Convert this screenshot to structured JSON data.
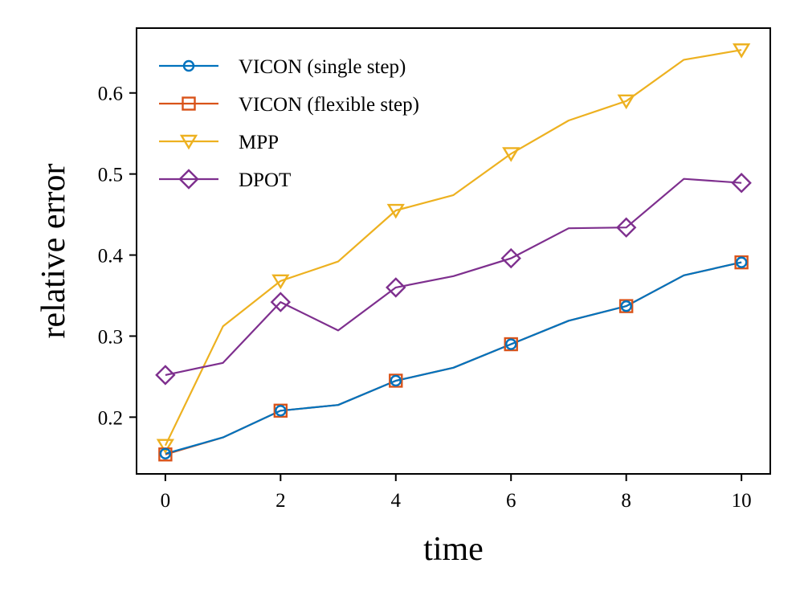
{
  "chart_data": {
    "type": "line",
    "title": "",
    "xlabel": "time",
    "ylabel": "relative error",
    "xlim": [
      -0.5,
      10.5
    ],
    "ylim": [
      0.13,
      0.68
    ],
    "xticks": [
      0,
      2,
      4,
      6,
      8,
      10
    ],
    "xtick_labels": [
      "0",
      "2",
      "4",
      "6",
      "8",
      "10"
    ],
    "yticks": [
      0.2,
      0.3,
      0.4,
      0.5,
      0.6
    ],
    "ytick_labels": [
      "0.2",
      "0.3",
      "0.4",
      "0.5",
      "0.6"
    ],
    "grid": false,
    "legend_position": "top-left",
    "x": [
      0,
      1,
      2,
      3,
      4,
      5,
      6,
      7,
      8,
      9,
      10
    ],
    "series": [
      {
        "name": "VICON (single step)",
        "color": "#0072BD",
        "marker": "circle",
        "values": [
          0.155,
          0.175,
          0.208,
          0.215,
          0.245,
          0.261,
          0.29,
          0.319,
          0.337,
          0.375,
          0.391
        ]
      },
      {
        "name": "VICON (flexible step)",
        "color": "#D95319",
        "marker": "square",
        "values": [
          0.154,
          0.175,
          0.208,
          0.215,
          0.245,
          0.261,
          0.29,
          0.319,
          0.337,
          0.375,
          0.391
        ]
      },
      {
        "name": "MPP",
        "color": "#EDB120",
        "marker": "triangle-down",
        "values": [
          0.165,
          0.312,
          0.368,
          0.392,
          0.455,
          0.474,
          0.525,
          0.566,
          0.59,
          0.641,
          0.653
        ]
      },
      {
        "name": "DPOT",
        "color": "#7E2F8E",
        "marker": "diamond",
        "values": [
          0.252,
          0.267,
          0.342,
          0.307,
          0.36,
          0.374,
          0.396,
          0.433,
          0.434,
          0.494,
          0.489
        ]
      }
    ],
    "marker_x": [
      0,
      2,
      4,
      6,
      8,
      10
    ]
  }
}
